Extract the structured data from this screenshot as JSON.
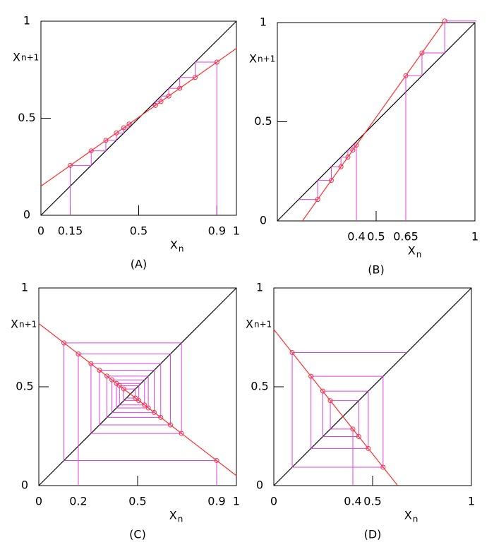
{
  "chart_data": [
    {
      "type": "cobweb",
      "label": "(A)",
      "xlabel": "X",
      "xlabel_sub": "n",
      "ylabel": "X",
      "ylabel_sub": "n+1",
      "xlim": [
        0,
        1
      ],
      "ylim": [
        0,
        1
      ],
      "xticks": [
        0,
        0.15,
        0.5,
        0.9,
        1
      ],
      "yticks": [
        0,
        0.5,
        1
      ],
      "identity": {
        "x": [
          0,
          1
        ],
        "values": [
          0,
          1
        ],
        "color": "#000000"
      },
      "map": {
        "x": [
          0,
          1
        ],
        "values": [
          0.15,
          0.86
        ],
        "color": "#ff3030"
      },
      "orbits": [
        {
          "color": "#e040e0",
          "x": [
            0.9,
            0.789,
            0.71,
            0.654,
            0.614,
            0.586
          ],
          "values": [
            0.789,
            0.71,
            0.654,
            0.614,
            0.586,
            0.566
          ]
        },
        {
          "color": "#e040e0",
          "x": [
            0.15,
            0.257,
            0.332,
            0.386,
            0.424,
            0.451
          ],
          "values": [
            0.257,
            0.332,
            0.386,
            0.424,
            0.451,
            0.47
          ]
        }
      ]
    },
    {
      "type": "cobweb",
      "label": "(B)",
      "xlabel": "X",
      "xlabel_sub": "n",
      "ylabel": "X",
      "ylabel_sub": "n+1",
      "xlim": [
        0,
        1
      ],
      "ylim": [
        0,
        1
      ],
      "xticks": [
        0.4,
        0.5,
        0.65,
        1
      ],
      "yticks": [
        0,
        0.5,
        1
      ],
      "identity": {
        "x": [
          0,
          1
        ],
        "values": [
          0,
          1
        ],
        "color": "#000000"
      },
      "map": {
        "x": [
          0.127,
          0.841
        ],
        "values": [
          0,
          1
        ],
        "color": "#ff3030"
      },
      "orbits": [
        {
          "color": "#e040e0",
          "x": [
            0.4,
            0.382,
            0.357,
            0.322,
            0.273,
            0.204
          ],
          "values": [
            0.382,
            0.357,
            0.322,
            0.273,
            0.204,
            0.108
          ]
        },
        {
          "color": "#e040e0",
          "x": [
            0.65,
            0.732,
            0.847
          ],
          "values": [
            0.732,
            0.847,
            1.008
          ]
        }
      ]
    },
    {
      "type": "cobweb",
      "label": "(C)",
      "xlabel": "X",
      "xlabel_sub": "n",
      "ylabel": "X",
      "ylabel_sub": "n+1",
      "xlim": [
        0,
        1
      ],
      "ylim": [
        0,
        1
      ],
      "xticks": [
        0,
        0.2,
        0.5,
        0.9,
        1
      ],
      "yticks": [
        0,
        0.5,
        1
      ],
      "identity": {
        "x": [
          0,
          1
        ],
        "values": [
          0,
          1
        ],
        "color": "#000000"
      },
      "map": {
        "x": [
          0,
          1
        ],
        "values": [
          0.82,
          0.05
        ],
        "color": "#ff3030"
      },
      "orbits": [
        {
          "color": "#e040e0",
          "x": [
            0.2,
            0.666,
            0.307,
            0.584,
            0.37,
            0.535,
            0.408,
            0.506,
            0.43,
            0.489
          ],
          "values": [
            0.666,
            0.307,
            0.584,
            0.37,
            0.535,
            0.408,
            0.506,
            0.43,
            0.489,
            0.443
          ]
        },
        {
          "color": "#e040e0",
          "x": [
            0.9,
            0.127,
            0.722,
            0.264,
            0.617,
            0.345,
            0.554,
            0.393
          ],
          "values": [
            0.127,
            0.722,
            0.264,
            0.617,
            0.345,
            0.554,
            0.393,
            0.517
          ]
        }
      ]
    },
    {
      "type": "cobweb",
      "label": "(D)",
      "xlabel": "X",
      "xlabel_sub": "n",
      "ylabel": "X",
      "ylabel_sub": "n+1",
      "xlim": [
        0,
        1
      ],
      "ylim": [
        0,
        1
      ],
      "xticks": [
        0,
        0.4,
        0.5,
        1
      ],
      "yticks": [
        0,
        0.5,
        1
      ],
      "identity": {
        "x": [
          0,
          1
        ],
        "values": [
          0,
          1
        ],
        "color": "#000000"
      },
      "map": {
        "x": [
          0,
          0.627
        ],
        "values": [
          0.79,
          0
        ],
        "color": "#ff3030"
      },
      "orbits": [
        {
          "color": "#e040e0",
          "x": [
            0.4,
            0.286,
            0.43,
            0.248,
            0.478,
            0.188,
            0.553,
            0.093
          ],
          "values": [
            0.286,
            0.43,
            0.248,
            0.478,
            0.188,
            0.553,
            0.093,
            0.673
          ]
        }
      ]
    }
  ]
}
